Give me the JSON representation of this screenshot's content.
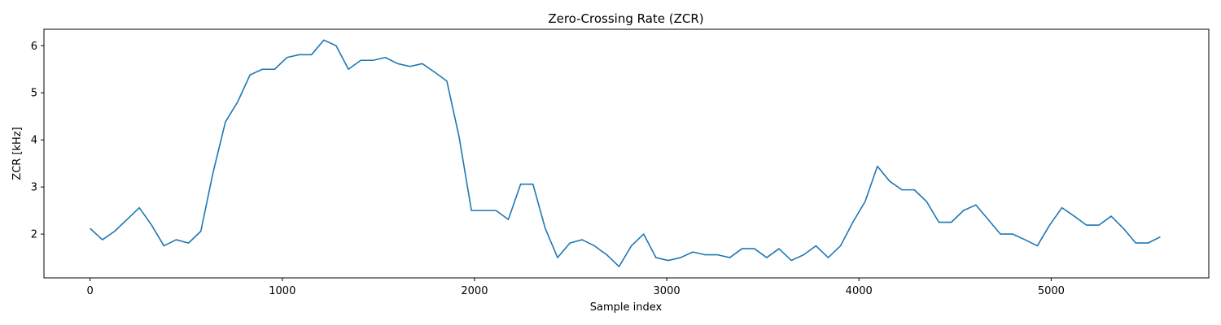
{
  "chart_data": {
    "type": "line",
    "title": "Zero-Crossing Rate (ZCR)",
    "xlabel": "Sample index",
    "ylabel": "ZCR [kHz]",
    "xlim": [
      -240,
      5820
    ],
    "ylim": [
      1.07,
      6.35
    ],
    "xticks": [
      0,
      1000,
      2000,
      3000,
      4000,
      5000
    ],
    "yticks": [
      2,
      3,
      4,
      5,
      6
    ],
    "grid": false,
    "line_color": "#1f77b4",
    "series": [
      {
        "x": [
          0,
          64,
          128,
          192,
          256,
          320,
          384,
          448,
          512,
          576,
          640,
          704,
          768,
          832,
          896,
          960,
          1024,
          1088,
          1152,
          1216,
          1280,
          1344,
          1408,
          1472,
          1536,
          1600,
          1664,
          1728,
          1792,
          1856,
          1920,
          1984,
          2048,
          2112,
          2176,
          2240,
          2304,
          2368,
          2432,
          2496,
          2560,
          2624,
          2688,
          2752,
          2816,
          2880,
          2944,
          3008,
          3072,
          3136,
          3200,
          3264,
          3328,
          3392,
          3456,
          3520,
          3584,
          3648,
          3712,
          3776,
          3840,
          3904,
          3968,
          4032,
          4096,
          4160,
          4224,
          4288,
          4352,
          4416,
          4480,
          4544,
          4608,
          4672,
          4736,
          4800,
          4864,
          4928,
          4992,
          5056,
          5120,
          5184,
          5248,
          5312,
          5376,
          5440,
          5504,
          5568
        ],
        "values": [
          2.12,
          1.88,
          2.06,
          2.31,
          2.56,
          2.19,
          1.75,
          1.88,
          1.81,
          2.06,
          3.31,
          4.38,
          4.81,
          5.38,
          5.5,
          5.5,
          5.75,
          5.81,
          5.81,
          6.12,
          6.0,
          5.5,
          5.69,
          5.69,
          5.75,
          5.62,
          5.56,
          5.62,
          5.44,
          5.25,
          4.06,
          2.5,
          2.5,
          2.5,
          2.31,
          3.06,
          3.06,
          2.12,
          1.5,
          1.81,
          1.88,
          1.75,
          1.56,
          1.31,
          1.75,
          2.0,
          1.5,
          1.44,
          1.5,
          1.62,
          1.56,
          1.56,
          1.5,
          1.69,
          1.69,
          1.5,
          1.69,
          1.44,
          1.56,
          1.75,
          1.5,
          1.75,
          2.25,
          2.69,
          3.44,
          3.12,
          2.94,
          2.94,
          2.69,
          2.25,
          2.25,
          2.5,
          2.62,
          2.31,
          2.0,
          2.0,
          1.88,
          1.75,
          2.19,
          2.56,
          2.38,
          2.19,
          2.19,
          2.38,
          2.12,
          1.81,
          1.81,
          1.94
        ]
      }
    ]
  }
}
